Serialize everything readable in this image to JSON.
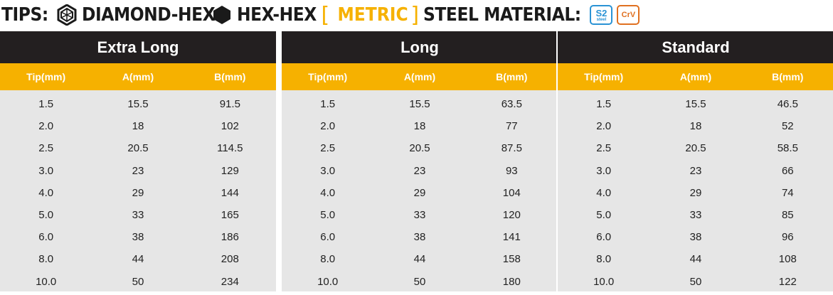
{
  "title": {
    "tips_label": "TIPS:",
    "diamond_hex_label": "DIAMOND-HEX",
    "hex_hex_label": "HEX-HEX",
    "bracket_open": "[",
    "metric_label": "METRIC",
    "bracket_close": "]",
    "steel_label": "STEEL MATERIAL:",
    "badge_s2": "S2",
    "badge_s2_sub": "steel",
    "badge_crv": "CrV"
  },
  "columns": [
    "Tip(mm)",
    "A(mm)",
    "B(mm)"
  ],
  "groups": [
    {
      "name": "Extra Long",
      "rows": [
        [
          "1.5",
          "15.5",
          "91.5"
        ],
        [
          "2.0",
          "18",
          "102"
        ],
        [
          "2.5",
          "20.5",
          "114.5"
        ],
        [
          "3.0",
          "23",
          "129"
        ],
        [
          "4.0",
          "29",
          "144"
        ],
        [
          "5.0",
          "33",
          "165"
        ],
        [
          "6.0",
          "38",
          "186"
        ],
        [
          "8.0",
          "44",
          "208"
        ],
        [
          "10.0",
          "50",
          "234"
        ]
      ]
    },
    {
      "name": "Long",
      "rows": [
        [
          "1.5",
          "15.5",
          "63.5"
        ],
        [
          "2.0",
          "18",
          "77"
        ],
        [
          "2.5",
          "20.5",
          "87.5"
        ],
        [
          "3.0",
          "23",
          "93"
        ],
        [
          "4.0",
          "29",
          "104"
        ],
        [
          "5.0",
          "33",
          "120"
        ],
        [
          "6.0",
          "38",
          "141"
        ],
        [
          "8.0",
          "44",
          "158"
        ],
        [
          "10.0",
          "50",
          "180"
        ]
      ]
    },
    {
      "name": "Standard",
      "rows": [
        [
          "1.5",
          "15.5",
          "46.5"
        ],
        [
          "2.0",
          "18",
          "52"
        ],
        [
          "2.5",
          "20.5",
          "58.5"
        ],
        [
          "3.0",
          "23",
          "66"
        ],
        [
          "4.0",
          "29",
          "74"
        ],
        [
          "5.0",
          "33",
          "85"
        ],
        [
          "6.0",
          "38",
          "96"
        ],
        [
          "8.0",
          "44",
          "108"
        ],
        [
          "10.0",
          "50",
          "122"
        ]
      ]
    }
  ],
  "colors": {
    "header_dark": "#231f20",
    "header_accent": "#f6b100",
    "body_bg": "#e6e6e6",
    "s2_blue": "#2a93d5",
    "crv_orange": "#e07020"
  },
  "icons": {
    "diamond_hex": "diamond-hex-icon",
    "hex_hex": "hex-hex-icon"
  }
}
